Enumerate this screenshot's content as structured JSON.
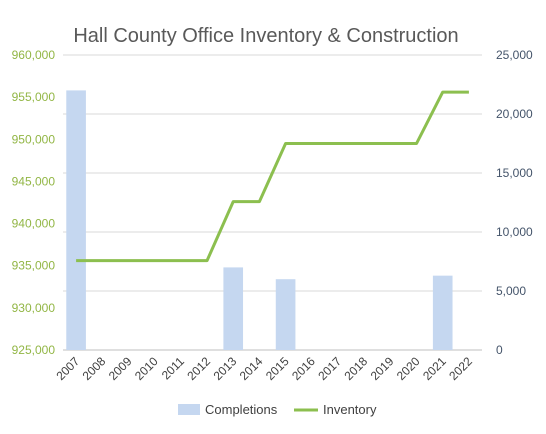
{
  "chart_data": {
    "type": "bar+line",
    "title": "Hall County Office Inventory & Construction",
    "categories": [
      "2007",
      "2008",
      "2009",
      "2010",
      "2011",
      "2012",
      "2013",
      "2014",
      "2015",
      "2016",
      "2017",
      "2018",
      "2019",
      "2020",
      "2021",
      "2022"
    ],
    "series": [
      {
        "name": "Completions",
        "type": "bar",
        "axis": "right",
        "color": "#c5d7f0",
        "values": [
          22000,
          0,
          0,
          0,
          0,
          0,
          7000,
          0,
          6000,
          0,
          0,
          0,
          0,
          0,
          6300,
          0
        ]
      },
      {
        "name": "Inventory",
        "type": "line",
        "axis": "left",
        "color": "#8cbf4f",
        "values": [
          935600,
          935600,
          935600,
          935600,
          935600,
          935600,
          942600,
          942600,
          949500,
          949500,
          949500,
          949500,
          949500,
          949500,
          955600,
          955600
        ]
      }
    ],
    "y_left": {
      "min": 925000,
      "max": 960000,
      "step": 5000,
      "ticks": [
        "925,000",
        "930,000",
        "935,000",
        "940,000",
        "945,000",
        "950,000",
        "955,000",
        "960,000"
      ],
      "color": "#92b645"
    },
    "y_right": {
      "min": 0,
      "max": 25000,
      "step": 5000,
      "ticks": [
        "0",
        "5,000",
        "10,000",
        "15,000",
        "20,000",
        "25,000"
      ],
      "color": "#44546a"
    },
    "grid": true,
    "legend": "bottom"
  }
}
